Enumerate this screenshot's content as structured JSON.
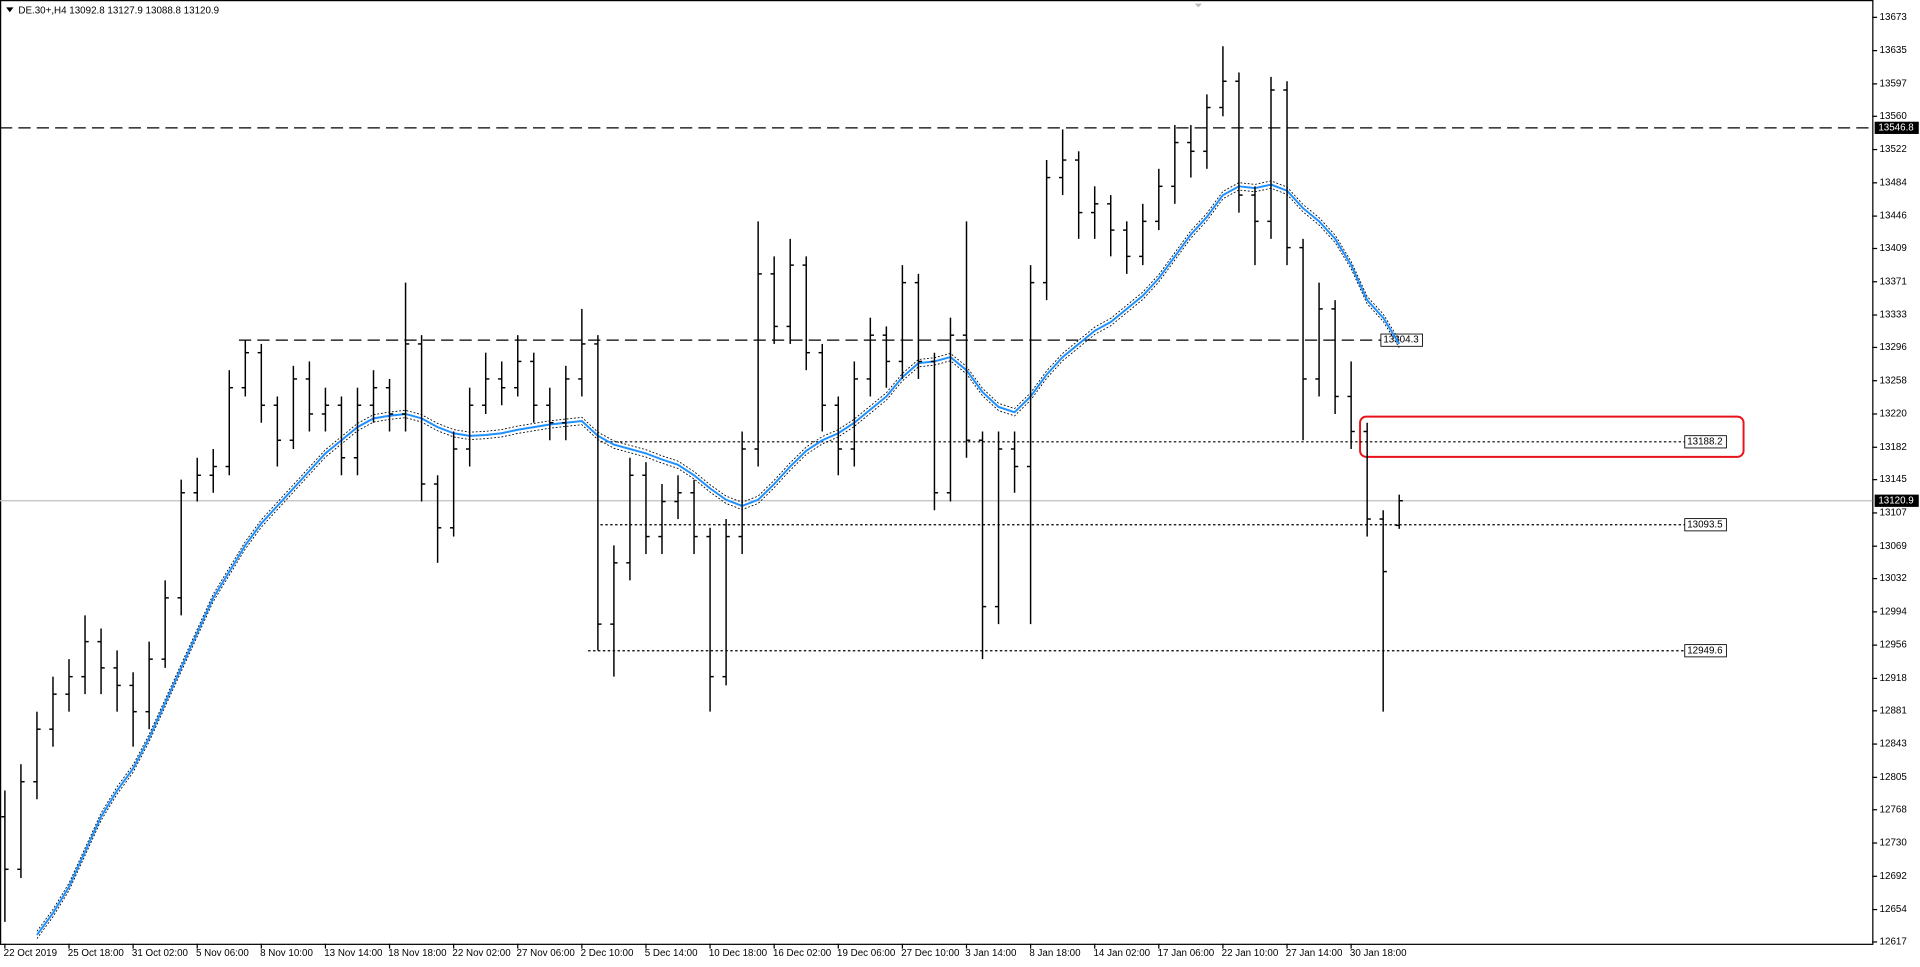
{
  "chart_data": {
    "type": "ohlc",
    "title": "DE.30+,H4  13092.8 13127.9 13088.8 13120.9",
    "categories": [
      "22 Oct 2019",
      null,
      null,
      null,
      "25 Oct 18:00",
      null,
      null,
      null,
      "31 Oct 02:00",
      null,
      null,
      null,
      "5 Nov 06:00",
      null,
      null,
      null,
      "8 Nov 10:00",
      null,
      null,
      null,
      "13 Nov 14:00",
      null,
      null,
      null,
      "18 Nov 18:00",
      null,
      null,
      null,
      "22 Nov 02:00",
      null,
      null,
      null,
      "27 Nov 06:00",
      null,
      null,
      null,
      "2 Dec 10:00",
      null,
      null,
      null,
      "5 Dec 14:00",
      null,
      null,
      null,
      "10 Dec 18:00",
      null,
      null,
      null,
      "16 Dec 02:00",
      null,
      null,
      null,
      "19 Dec 06:00",
      null,
      null,
      null,
      "27 Dec 10:00",
      null,
      null,
      null,
      "3 Jan 14:00",
      null,
      null,
      null,
      "8 Jan 18:00",
      null,
      null,
      null,
      "14 Jan 02:00",
      null,
      null,
      null,
      "17 Jan 06:00",
      null,
      null,
      null,
      "22 Jan 10:00",
      null,
      null,
      null,
      "27 Jan 14:00",
      null,
      null,
      null,
      "30 Jan 18:00",
      null,
      null,
      null
    ],
    "open": [
      12760,
      12700,
      12800,
      12860,
      12900,
      12920,
      12960,
      12930,
      12910,
      12880,
      12940,
      13010,
      13130,
      13150,
      13160,
      13250,
      13290,
      13230,
      13190,
      13260,
      13220,
      13230,
      13170,
      13230,
      13250,
      13220,
      13300,
      13140,
      13090,
      13180,
      13230,
      13260,
      13250,
      13280,
      13230,
      13210,
      13260,
      13300,
      12980,
      13050,
      13150,
      13080,
      13120,
      13130,
      13080,
      12920,
      13080,
      13180,
      13380,
      13320,
      13390,
      13290,
      13230,
      13180,
      13260,
      13310,
      13280,
      13370,
      13280,
      13130,
      13310,
      13190,
      13000,
      13180,
      13160,
      13370,
      13490,
      13510,
      13450,
      13460,
      13430,
      13400,
      13440,
      13480,
      13530,
      13520,
      13570,
      13600,
      13470,
      13440,
      13590,
      13410,
      13260,
      13340,
      13240,
      13200,
      13100,
      13092.8
    ],
    "high": [
      12790,
      12820,
      12880,
      12920,
      12940,
      12990,
      12975,
      12950,
      12925,
      12960,
      13030,
      13145,
      13170,
      13180,
      13270,
      13305,
      13300,
      13240,
      13275,
      13280,
      13250,
      13240,
      13250,
      13270,
      13260,
      13370,
      13310,
      13150,
      13200,
      13250,
      13290,
      13280,
      13310,
      13290,
      13250,
      13275,
      13340,
      13310,
      13070,
      13170,
      13165,
      13140,
      13150,
      13145,
      13090,
      13100,
      13200,
      13440,
      13400,
      13420,
      13400,
      13300,
      13240,
      13280,
      13330,
      13320,
      13390,
      13380,
      13290,
      13330,
      13440,
      13200,
      13200,
      13200,
      13390,
      13510,
      13545,
      13520,
      13480,
      13470,
      13440,
      13460,
      13500,
      13550,
      13550,
      13585,
      13640,
      13610,
      13480,
      13605,
      13600,
      13420,
      13370,
      13350,
      13280,
      13210,
      13110,
      13127.9
    ],
    "low": [
      12640,
      12690,
      12780,
      12840,
      12880,
      12900,
      12900,
      12880,
      12840,
      12860,
      12930,
      12990,
      13120,
      13130,
      13150,
      13240,
      13210,
      13160,
      13180,
      13200,
      13200,
      13150,
      13150,
      13210,
      13200,
      13200,
      13120,
      13050,
      13080,
      13160,
      13220,
      13230,
      13240,
      13210,
      13190,
      13190,
      13240,
      12950,
      12920,
      13030,
      13060,
      13060,
      13100,
      13060,
      12880,
      12910,
      13060,
      13160,
      13300,
      13300,
      13270,
      13200,
      13150,
      13160,
      13240,
      13250,
      13260,
      13260,
      13110,
      13120,
      13170,
      12940,
      12980,
      13130,
      12980,
      13350,
      13470,
      13420,
      13420,
      13400,
      13380,
      13390,
      13430,
      13460,
      13490,
      13500,
      13560,
      13450,
      13390,
      13420,
      13390,
      13190,
      13240,
      13220,
      13180,
      13080,
      12880,
      13088.8
    ],
    "close": [
      12700,
      12800,
      12860,
      12900,
      12920,
      12960,
      12930,
      12910,
      12880,
      12940,
      13010,
      13130,
      13150,
      13160,
      13250,
      13290,
      13230,
      13190,
      13260,
      13220,
      13230,
      13170,
      13230,
      13250,
      13220,
      13300,
      13140,
      13090,
      13180,
      13230,
      13260,
      13250,
      13280,
      13230,
      13210,
      13260,
      13300,
      12980,
      13050,
      13150,
      13080,
      13120,
      13130,
      13080,
      12920,
      13080,
      13180,
      13380,
      13320,
      13390,
      13290,
      13230,
      13180,
      13260,
      13310,
      13280,
      13370,
      13280,
      13130,
      13310,
      13190,
      13000,
      13180,
      13160,
      13370,
      13490,
      13510,
      13450,
      13460,
      13430,
      13400,
      13440,
      13480,
      13530,
      13520,
      13570,
      13600,
      13470,
      13440,
      13590,
      13410,
      13260,
      13340,
      13240,
      13200,
      13100,
      13040,
      13120.9
    ],
    "color": "#000000",
    "moving_average": {
      "color": "#1e90ff",
      "values": [
        null,
        null,
        12625,
        12650,
        12680,
        12720,
        12760,
        12790,
        12815,
        12850,
        12890,
        12930,
        12970,
        13010,
        13040,
        13070,
        13095,
        13115,
        13135,
        13155,
        13175,
        13190,
        13205,
        13215,
        13218,
        13220,
        13215,
        13205,
        13198,
        13195,
        13196,
        13198,
        13202,
        13205,
        13208,
        13210,
        13212,
        13195,
        13185,
        13180,
        13175,
        13168,
        13162,
        13150,
        13135,
        13122,
        13115,
        13122,
        13140,
        13160,
        13178,
        13190,
        13198,
        13210,
        13225,
        13240,
        13262,
        13278,
        13280,
        13285,
        13270,
        13245,
        13228,
        13222,
        13240,
        13265,
        13285,
        13300,
        13315,
        13325,
        13340,
        13355,
        13375,
        13400,
        13425,
        13445,
        13470,
        13480,
        13478,
        13482,
        13475,
        13455,
        13440,
        13420,
        13390,
        13350,
        13330,
        13300
      ]
    },
    "levels": [
      {
        "value": 13546.8,
        "style": "dashed"
      },
      {
        "value": 13304.3,
        "style": "dashed"
      },
      {
        "value": 13188.2,
        "style": "dotted"
      },
      {
        "value": 13093.5,
        "style": "dotted"
      },
      {
        "value": 12949.6,
        "style": "dotted"
      }
    ],
    "current_price": 13120.9,
    "highlight_zone": {
      "range": [
        13171,
        13217
      ],
      "color": "#e8141b"
    },
    "ylim": [
      12615,
      13690
    ],
    "yticks": [
      12617,
      12654,
      12692,
      12730,
      12768,
      12805,
      12843,
      12881,
      12918,
      12956,
      12994,
      13032,
      13069,
      13107,
      13145,
      13182,
      13220,
      13258,
      13296,
      13333,
      13371,
      13409,
      13446,
      13484,
      13522,
      13560,
      13597,
      13635,
      13673
    ]
  }
}
